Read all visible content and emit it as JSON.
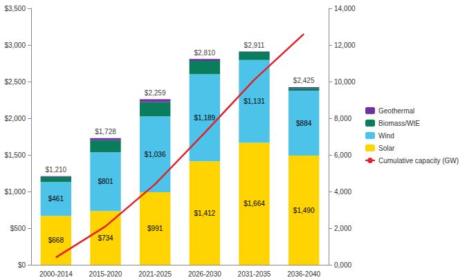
{
  "chart_data": {
    "type": "bar",
    "stacked": true,
    "grid": false,
    "legend": "right",
    "categories": [
      "2000-2014",
      "2015-2020",
      "2021-2025",
      "2026-2030",
      "2031-2035",
      "2036-2040"
    ],
    "series": [
      {
        "name": "Solar",
        "type": "bar",
        "color": "#FFD400",
        "data_labels": true,
        "values": [
          668,
          734,
          991,
          1412,
          1664,
          1490
        ],
        "value_labels": [
          "$668",
          "$734",
          "$991",
          "$1,412",
          "$1,664",
          "$1,490"
        ]
      },
      {
        "name": "Wind",
        "type": "bar",
        "color": "#4DC3EA",
        "data_labels": true,
        "values": [
          461,
          801,
          1036,
          1189,
          1131,
          884
        ],
        "value_labels": [
          "$461",
          "$801",
          "$1,036",
          "$1,189",
          "$1,131",
          "$884"
        ]
      },
      {
        "name": "Biomass/WtE",
        "type": "bar",
        "color": "#0A7D5C",
        "values": [
          71,
          165,
          194,
          183,
          111,
          39
        ]
      },
      {
        "name": "Geothermal",
        "type": "bar",
        "color": "#7030A0",
        "values": [
          10,
          28,
          38,
          26,
          5,
          12
        ]
      },
      {
        "name": "Cumulative capacity (GW)",
        "type": "line",
        "axis": "y2",
        "color": "#E3202A",
        "marker": "none",
        "line_style": "solid",
        "values": [
          400,
          2100,
          4400,
          7200,
          10100,
          12600
        ]
      }
    ],
    "totals": {
      "values": [
        1210,
        1728,
        2259,
        2810,
        2911,
        2425
      ],
      "value_labels": [
        "$1,210",
        "$1,728",
        "$2,259",
        "$2,810",
        "$2,911",
        "$2,425"
      ]
    },
    "ylim": [
      0,
      3500
    ],
    "yticks": [
      {
        "value": 0,
        "label": "$0"
      },
      {
        "value": 500,
        "label": "$500"
      },
      {
        "value": 1000,
        "label": "$1,000"
      },
      {
        "value": 1500,
        "label": "$1,500"
      },
      {
        "value": 2000,
        "label": "$2,000"
      },
      {
        "value": 2500,
        "label": "$2,500"
      },
      {
        "value": 3000,
        "label": "$3,000"
      },
      {
        "value": 3500,
        "label": "$3,500"
      }
    ],
    "y2lim": [
      0,
      14000
    ],
    "y2ticks": [
      {
        "value": 0,
        "label": "0,000"
      },
      {
        "value": 2000,
        "label": "2,000"
      },
      {
        "value": 4000,
        "label": "4,000"
      },
      {
        "value": 6000,
        "label": "6,000"
      },
      {
        "value": 8000,
        "label": "8,000"
      },
      {
        "value": 10000,
        "label": "10,000"
      },
      {
        "value": 12000,
        "label": "12,000"
      },
      {
        "value": 14000,
        "label": "14,000"
      }
    ]
  }
}
